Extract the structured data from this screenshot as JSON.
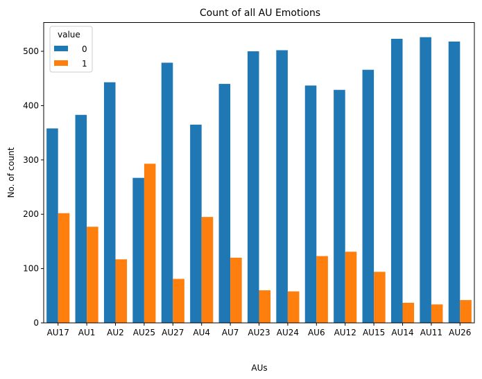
{
  "chart_data": {
    "type": "bar",
    "title": "Count of all AU Emotions",
    "xlabel": "AUs",
    "ylabel": "No. of count",
    "ylim": [
      0,
      553
    ],
    "yticks": [
      0,
      100,
      200,
      300,
      400,
      500
    ],
    "grid": false,
    "categories": [
      "AU17",
      "AU1",
      "AU2",
      "AU25",
      "AU27",
      "AU4",
      "AU7",
      "AU23",
      "AU24",
      "AU6",
      "AU12",
      "AU15",
      "AU14",
      "AU11",
      "AU26"
    ],
    "legend": {
      "title": "value",
      "placement": "top-left"
    },
    "series": [
      {
        "name": "0",
        "color": "#1f77b4",
        "values": [
          358,
          383,
          443,
          267,
          479,
          365,
          440,
          500,
          502,
          437,
          429,
          466,
          523,
          526,
          518
        ]
      },
      {
        "name": "1",
        "color": "#ff7f0e",
        "values": [
          202,
          177,
          117,
          293,
          81,
          195,
          120,
          60,
          58,
          123,
          131,
          94,
          37,
          34,
          42
        ]
      }
    ]
  }
}
